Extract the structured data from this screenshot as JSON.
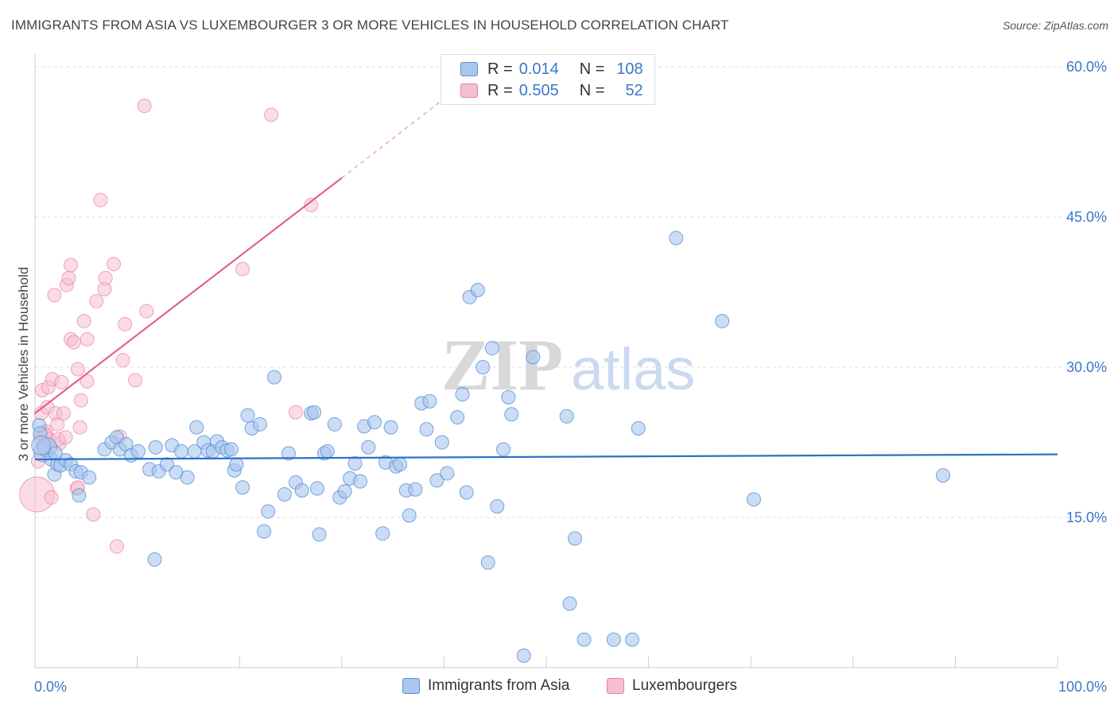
{
  "header": {
    "title": "IMMIGRANTS FROM ASIA VS LUXEMBOURGER 3 OR MORE VEHICLES IN HOUSEHOLD CORRELATION CHART",
    "source": "Source: ZipAtlas.com"
  },
  "colors": {
    "blue_fill": "#a9c7ee",
    "blue_stroke": "#5b8fd6",
    "blue_line": "#2f6fcb",
    "pink_fill": "#f6bfd0",
    "pink_stroke": "#e8819f",
    "pink_line": "#e2628b",
    "accent_text": "#3a78c9"
  },
  "legend_top": {
    "rows": [
      {
        "r_label": "R =",
        "r_value": "0.014",
        "n_label": "N =",
        "n_value": "108"
      },
      {
        "r_label": "R =",
        "r_value": "0.505",
        "n_label": "N =",
        "n_value": "52"
      }
    ]
  },
  "legend_bottom": {
    "items": [
      "Immigrants from Asia",
      "Luxembourgers"
    ]
  },
  "watermark": {
    "zip": "ZIP",
    "atlas": "atlas"
  },
  "chart_data": {
    "type": "scatter",
    "title": "IMMIGRANTS FROM ASIA VS LUXEMBOURGER 3 OR MORE VEHICLES IN HOUSEHOLD CORRELATION CHART",
    "xlabel": "",
    "ylabel": "3 or more Vehicles in Household",
    "xlim": [
      0,
      100
    ],
    "ylim": [
      0,
      60
    ],
    "x_tick_labels": [
      "0.0%",
      "100.0%"
    ],
    "y_ticks": [
      15,
      30,
      45,
      60
    ],
    "y_tick_labels": [
      "15.0%",
      "30.0%",
      "45.0%",
      "60.0%"
    ],
    "grid": true,
    "series": [
      {
        "name": "Immigrants from Asia",
        "R": 0.014,
        "N": 108,
        "trend": {
          "x0": 0,
          "y0": 20.8,
          "x1": 100,
          "y1": 21.3
        },
        "points": [
          [
            0.4,
            24.2
          ],
          [
            0.5,
            23.4
          ],
          [
            0.8,
            21.5
          ],
          [
            1.2,
            22.0
          ],
          [
            1.6,
            20.8
          ],
          [
            1.9,
            19.3
          ],
          [
            2.2,
            20.3
          ],
          [
            2.5,
            20.2
          ],
          [
            3.0,
            20.7
          ],
          [
            3.5,
            20.3
          ],
          [
            4.0,
            19.6
          ],
          [
            4.3,
            17.2
          ],
          [
            4.5,
            19.5
          ],
          [
            5.3,
            19.0
          ],
          [
            6.8,
            21.8
          ],
          [
            7.5,
            22.5
          ],
          [
            8.0,
            23.0
          ],
          [
            8.3,
            21.8
          ],
          [
            8.9,
            22.3
          ],
          [
            9.4,
            21.2
          ],
          [
            10.1,
            21.6
          ],
          [
            11.2,
            19.8
          ],
          [
            11.7,
            10.8
          ],
          [
            11.8,
            22.0
          ],
          [
            12.1,
            19.6
          ],
          [
            12.9,
            20.3
          ],
          [
            13.4,
            22.2
          ],
          [
            13.8,
            19.5
          ],
          [
            14.3,
            21.6
          ],
          [
            14.9,
            19.0
          ],
          [
            15.6,
            21.6
          ],
          [
            15.8,
            24.0
          ],
          [
            16.5,
            22.5
          ],
          [
            16.9,
            21.7
          ],
          [
            17.4,
            21.6
          ],
          [
            17.8,
            22.6
          ],
          [
            18.3,
            22.0
          ],
          [
            18.8,
            21.7
          ],
          [
            19.2,
            21.8
          ],
          [
            19.5,
            19.7
          ],
          [
            19.7,
            20.3
          ],
          [
            20.3,
            18.0
          ],
          [
            20.8,
            25.2
          ],
          [
            21.2,
            23.9
          ],
          [
            22.0,
            24.3
          ],
          [
            22.4,
            13.6
          ],
          [
            22.8,
            15.6
          ],
          [
            23.4,
            29.0
          ],
          [
            24.4,
            17.3
          ],
          [
            24.8,
            21.4
          ],
          [
            25.5,
            18.5
          ],
          [
            26.1,
            17.7
          ],
          [
            27.0,
            25.4
          ],
          [
            27.3,
            25.5
          ],
          [
            27.6,
            17.9
          ],
          [
            27.8,
            13.3
          ],
          [
            28.3,
            21.4
          ],
          [
            28.6,
            21.6
          ],
          [
            29.3,
            24.3
          ],
          [
            29.8,
            17.0
          ],
          [
            30.3,
            17.6
          ],
          [
            30.8,
            18.9
          ],
          [
            31.3,
            20.4
          ],
          [
            31.8,
            18.6
          ],
          [
            32.2,
            24.1
          ],
          [
            32.6,
            22.0
          ],
          [
            33.2,
            24.5
          ],
          [
            34.0,
            13.4
          ],
          [
            34.3,
            20.5
          ],
          [
            34.8,
            24.0
          ],
          [
            35.3,
            20.1
          ],
          [
            35.7,
            20.3
          ],
          [
            36.3,
            17.7
          ],
          [
            36.6,
            15.2
          ],
          [
            37.2,
            17.8
          ],
          [
            37.8,
            26.4
          ],
          [
            38.3,
            23.8
          ],
          [
            38.6,
            26.6
          ],
          [
            39.3,
            18.7
          ],
          [
            39.8,
            22.5
          ],
          [
            40.3,
            19.4
          ],
          [
            41.3,
            25.0
          ],
          [
            41.8,
            27.3
          ],
          [
            42.2,
            17.5
          ],
          [
            42.5,
            37.0
          ],
          [
            43.3,
            37.7
          ],
          [
            43.8,
            30.0
          ],
          [
            44.3,
            10.5
          ],
          [
            44.7,
            31.9
          ],
          [
            45.2,
            16.1
          ],
          [
            45.8,
            21.8
          ],
          [
            46.3,
            27.0
          ],
          [
            46.6,
            25.3
          ],
          [
            47.8,
            1.2
          ],
          [
            48.7,
            31.0
          ],
          [
            52.0,
            25.1
          ],
          [
            52.3,
            6.4
          ],
          [
            52.8,
            12.9
          ],
          [
            53.7,
            2.8
          ],
          [
            56.6,
            2.8
          ],
          [
            58.4,
            2.8
          ],
          [
            59.0,
            23.9
          ],
          [
            62.7,
            42.9
          ],
          [
            67.2,
            34.6
          ],
          [
            70.3,
            16.8
          ],
          [
            88.8,
            19.2
          ],
          [
            0.6,
            22.2
          ],
          [
            2.0,
            21.4
          ]
        ]
      },
      {
        "name": "Luxembourgers",
        "R": 0.505,
        "N": 52,
        "trend": {
          "x0": 0,
          "y0": 25.4,
          "x1": 30,
          "y1": 48.9,
          "dash_to_x": 40,
          "dash_to_y": 56.8
        },
        "points": [
          [
            0.2,
            17.3
          ],
          [
            0.3,
            20.6
          ],
          [
            0.5,
            23.0
          ],
          [
            0.6,
            25.4
          ],
          [
            0.7,
            27.7
          ],
          [
            0.9,
            23.5
          ],
          [
            1.1,
            23.6
          ],
          [
            1.2,
            26.0
          ],
          [
            1.3,
            28.0
          ],
          [
            1.4,
            22.8
          ],
          [
            1.6,
            17.0
          ],
          [
            1.7,
            28.8
          ],
          [
            1.9,
            37.2
          ],
          [
            2.0,
            25.4
          ],
          [
            2.2,
            24.3
          ],
          [
            2.4,
            22.4
          ],
          [
            2.6,
            28.5
          ],
          [
            2.8,
            25.4
          ],
          [
            3.1,
            38.2
          ],
          [
            3.3,
            38.9
          ],
          [
            3.5,
            32.8
          ],
          [
            3.5,
            40.2
          ],
          [
            3.8,
            32.5
          ],
          [
            4.1,
            17.9
          ],
          [
            4.2,
            29.8
          ],
          [
            4.4,
            24.0
          ],
          [
            4.5,
            26.7
          ],
          [
            4.8,
            34.6
          ],
          [
            5.1,
            28.6
          ],
          [
            5.1,
            32.8
          ],
          [
            5.7,
            15.3
          ],
          [
            6.0,
            36.6
          ],
          [
            6.4,
            46.7
          ],
          [
            6.8,
            37.8
          ],
          [
            6.9,
            38.9
          ],
          [
            7.7,
            40.3
          ],
          [
            8.0,
            12.1
          ],
          [
            8.3,
            23.1
          ],
          [
            8.6,
            30.7
          ],
          [
            8.8,
            34.3
          ],
          [
            9.8,
            28.7
          ],
          [
            10.7,
            56.1
          ],
          [
            10.9,
            35.6
          ],
          [
            20.3,
            39.8
          ],
          [
            23.1,
            55.2
          ],
          [
            25.5,
            25.5
          ],
          [
            27.0,
            46.2
          ],
          [
            4.2,
            18.0
          ],
          [
            1.0,
            23.2
          ],
          [
            2.3,
            22.8
          ],
          [
            3.0,
            23.0
          ],
          [
            0.8,
            22.2
          ]
        ]
      }
    ]
  }
}
